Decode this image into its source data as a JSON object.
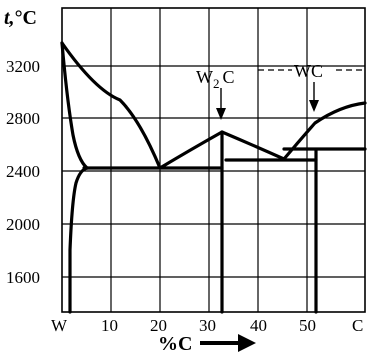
{
  "diagram": {
    "y_axis_title_base": "t,",
    "y_axis_title_unit": "°C",
    "x_axis_title": "%C",
    "y_ticks": [
      "3200",
      "2800",
      "2400",
      "2000",
      "1600"
    ],
    "x_ticks": [
      "W",
      "10",
      "20",
      "30",
      "40",
      "50",
      "C"
    ],
    "phase_labels": {
      "w2c_main": "W",
      "w2c_sub": "2",
      "w2c_tail": "C",
      "wc": "WC"
    }
  },
  "chart_data": {
    "type": "phase-diagram",
    "xlim": [
      0,
      55
    ],
    "ylim": [
      1400,
      3500
    ],
    "x_unit": "%C",
    "y_unit": "°C",
    "liquidus": [
      [
        0,
        3400
      ],
      [
        10,
        3000
      ],
      [
        20,
        2450
      ],
      [
        32,
        2720
      ],
      [
        43,
        2520
      ],
      [
        50,
        2800
      ],
      [
        55,
        2930
      ]
    ],
    "solidus_w": [
      [
        0,
        3400
      ],
      [
        1,
        3000
      ],
      [
        2,
        2600
      ],
      [
        3,
        2450
      ],
      [
        4,
        2450
      ]
    ],
    "solvus_w": [
      [
        1,
        1400
      ],
      [
        1,
        1900
      ],
      [
        1.5,
        2200
      ],
      [
        2.5,
        2400
      ],
      [
        3,
        2450
      ]
    ],
    "eutectic_1_temperature": 2450,
    "eutectic_1_range": [
      2.5,
      32
    ],
    "w2c_composition": 32,
    "w2c_range_top": 2720,
    "eutectic_2_temperature": 2520,
    "eutectic_2_range": [
      32,
      50
    ],
    "peritectic_temperature": 2600,
    "peritectic_range": [
      43,
      55
    ],
    "wc_composition": 50
  }
}
